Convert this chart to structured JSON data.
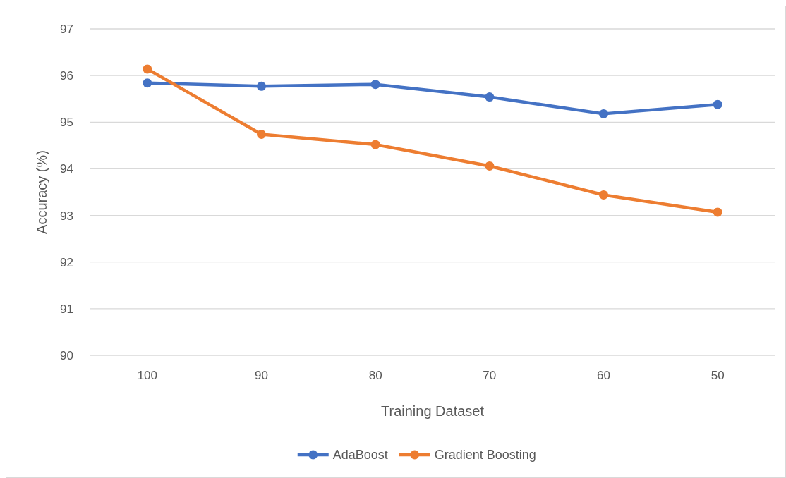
{
  "chart_data": {
    "type": "line",
    "xlabel": "Training Dataset",
    "ylabel": "Accuracy (%)",
    "categories": [
      "100",
      "90",
      "80",
      "70",
      "60",
      "50"
    ],
    "series": [
      {
        "name": "AdaBoost",
        "color": "#4472c4",
        "values": [
          95.84,
          95.77,
          95.81,
          95.54,
          95.18,
          95.38
        ]
      },
      {
        "name": "Gradient Boosting",
        "color": "#ed7d31",
        "values": [
          96.14,
          94.74,
          94.52,
          94.06,
          93.44,
          93.07
        ]
      }
    ],
    "ylim": [
      90,
      97
    ],
    "yticks": [
      90,
      91,
      92,
      93,
      94,
      95,
      96,
      97
    ],
    "grid": "y",
    "legend": "bottom",
    "marker": "circle",
    "line_style": "solid"
  }
}
